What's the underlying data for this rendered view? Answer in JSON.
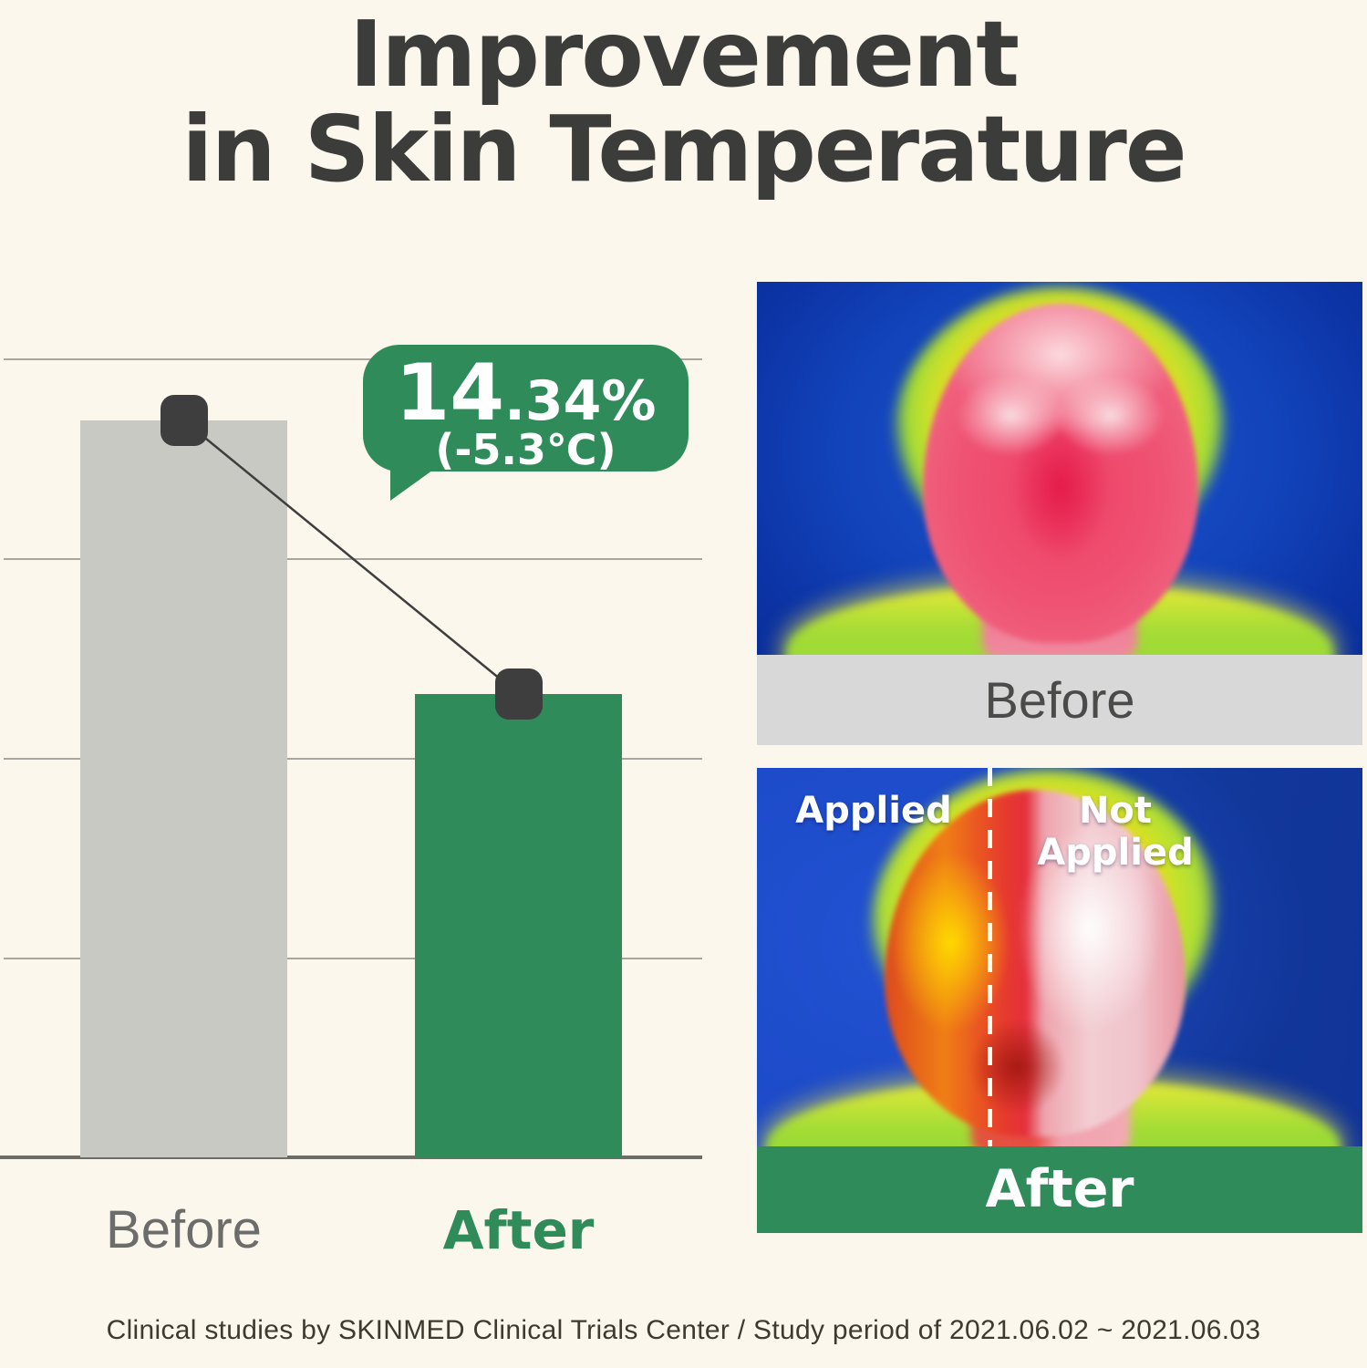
{
  "title": {
    "line1": "Improvement",
    "line2": "in Skin Temperature"
  },
  "bubble": {
    "value_large": "14",
    "value_small": ".34%",
    "delta": "(-5.3℃)"
  },
  "chart_data": {
    "type": "bar",
    "title": "Improvement in Skin Temperature",
    "categories": [
      "Before",
      "After"
    ],
    "series": [
      {
        "name": "Skin temperature (schematic, unlabeled axis)",
        "values": [
          36.9,
          23.2
        ]
      }
    ],
    "unit": "relative scale (no numeric axis labels shown)",
    "ylim": [
      0,
      41
    ],
    "gridline_step": 10,
    "gridlines_visible": 4,
    "legend": "none",
    "annotation": "14.34% (-5.3℃)",
    "bar_colors": {
      "Before": "#C9C9C3",
      "After": "#2F8B59"
    },
    "marker_color": "#3E3E3E"
  },
  "thermal": {
    "before_caption": "Before",
    "after_caption": "After",
    "applied_label": "Applied",
    "not_applied_label": "Not Applied"
  },
  "footer": {
    "text": "Clinical studies by SKINMED Clinical Trials Center / Study period of 2021.06.02 ~ 2021.06.03"
  },
  "colors": {
    "background": "#FBF7ED",
    "ink": "#3C3C3B",
    "green": "#2F8B59",
    "bar_gray": "#C9C9C3",
    "marker": "#3E3E3E",
    "gridline": "#A7A6A0",
    "axis": "#6E6C66",
    "caption_bar_gray": "#D8D8D8",
    "xlabel_gray": "#6C6C6A",
    "footer_text": "#3E3A31",
    "thermal_blue": "#1243BA"
  }
}
